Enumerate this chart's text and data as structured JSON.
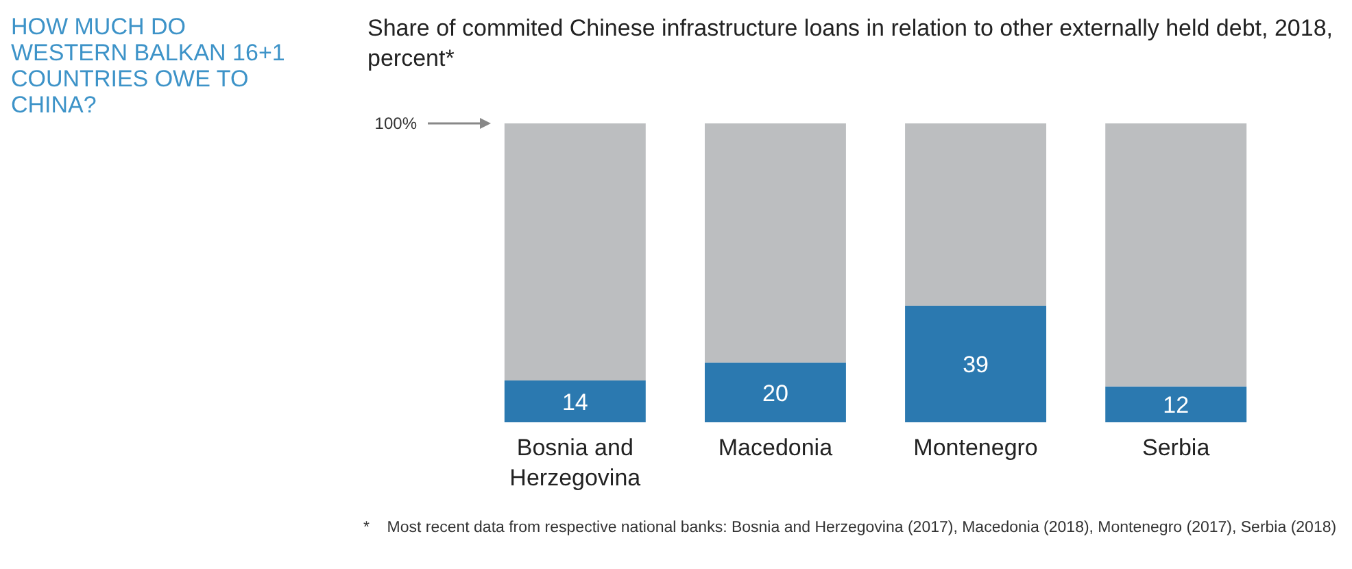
{
  "chart_data": {
    "type": "bar",
    "title": "HOW MUCH DO WESTERN BALKAN 16+1 COUNTRIES OWE TO CHINA?",
    "subtitle": "Share of commited Chinese infrastructure loans in relation to other externally held debt, 2018, percent*",
    "categories": [
      "Bosnia and Herzegovina",
      "Macedonia",
      "Montenegro",
      "Serbia"
    ],
    "stacked": true,
    "series": [
      {
        "color": "#2b79b0",
        "values": [
          14,
          20,
          39,
          12
        ],
        "value_labels": [
          "14",
          "20",
          "39",
          "12"
        ]
      },
      {
        "color": "#bcbec0",
        "values": [
          86,
          80,
          61,
          88
        ]
      }
    ],
    "ylim": [
      0,
      100
    ],
    "annotations": [
      "100%",
      "* Most recent data from respective national banks: Bosnia and Herzegovina (2017), Macedonia (2018), Montenegro (2017), Serbia (2018)"
    ]
  }
}
